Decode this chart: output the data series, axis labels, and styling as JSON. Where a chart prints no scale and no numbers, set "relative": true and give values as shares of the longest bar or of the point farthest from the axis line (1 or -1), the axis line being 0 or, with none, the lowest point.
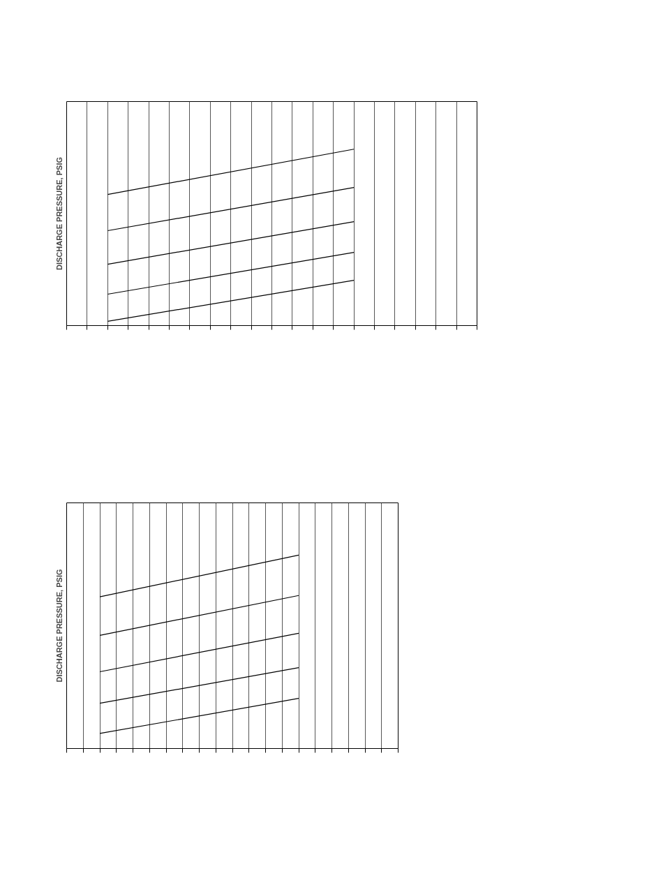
{
  "chart_data": [
    {
      "type": "line",
      "ylabel": "DISCHARGE PRESSURE, PSIG",
      "relative": true,
      "categories": [
        null,
        null,
        null,
        null,
        null,
        null,
        null,
        null,
        null,
        null,
        null,
        null,
        null,
        null,
        null,
        null,
        null,
        null,
        null,
        null,
        null
      ],
      "grid": "x",
      "marker": "none",
      "line_style": "solid",
      "series": [
        {
          "color": "#000000",
          "values": [
            null,
            null,
            0.743,
            null,
            null,
            null,
            null,
            null,
            null,
            null,
            null,
            null,
            null,
            null,
            1,
            null,
            null,
            null,
            null,
            null,
            null
          ]
        },
        {
          "color": "#000000",
          "values": [
            null,
            null,
            0.538,
            null,
            null,
            null,
            null,
            null,
            null,
            null,
            null,
            null,
            null,
            null,
            0.783,
            null,
            null,
            null,
            null,
            null,
            null
          ]
        },
        {
          "color": "#000000",
          "values": [
            null,
            null,
            0.348,
            null,
            null,
            null,
            null,
            null,
            null,
            null,
            null,
            null,
            null,
            null,
            0.589,
            null,
            null,
            null,
            null,
            null,
            null
          ]
        },
        {
          "color": "#000000",
          "values": [
            null,
            null,
            0.178,
            null,
            null,
            null,
            null,
            null,
            null,
            null,
            null,
            null,
            null,
            null,
            0.415,
            null,
            null,
            null,
            null,
            null,
            null
          ]
        },
        {
          "color": "#000000",
          "values": [
            null,
            null,
            0.024,
            null,
            null,
            null,
            null,
            null,
            null,
            null,
            null,
            null,
            null,
            null,
            0.257,
            null,
            null,
            null,
            null,
            null,
            null
          ]
        }
      ]
    },
    {
      "type": "line",
      "ylabel": "DISCHARGE PRESSURE, PSIG",
      "relative": true,
      "categories": [
        null,
        null,
        null,
        null,
        null,
        null,
        null,
        null,
        null,
        null,
        null,
        null,
        null,
        null,
        null,
        null,
        null,
        null,
        null,
        null,
        null
      ],
      "grid": "x",
      "marker": "none",
      "line_style": "solid",
      "series": [
        {
          "color": "#000000",
          "values": [
            null,
            null,
            0.784,
            null,
            null,
            null,
            null,
            null,
            null,
            null,
            null,
            null,
            null,
            null,
            1,
            null,
            null,
            null,
            null,
            null,
            null
          ]
        },
        {
          "color": "#000000",
          "values": [
            null,
            null,
            0.585,
            null,
            null,
            null,
            null,
            null,
            null,
            null,
            null,
            null,
            null,
            null,
            0.791,
            null,
            null,
            null,
            null,
            null,
            null
          ]
        },
        {
          "color": "#000000",
          "values": [
            null,
            null,
            0.397,
            null,
            null,
            null,
            null,
            null,
            null,
            null,
            null,
            null,
            null,
            null,
            0.596,
            null,
            null,
            null,
            null,
            null,
            null
          ]
        },
        {
          "color": "#000000",
          "values": [
            null,
            null,
            0.234,
            null,
            null,
            null,
            null,
            null,
            null,
            null,
            null,
            null,
            null,
            null,
            0.418,
            null,
            null,
            null,
            null,
            null,
            null
          ]
        },
        {
          "color": "#000000",
          "values": [
            null,
            null,
            0.078,
            null,
            null,
            null,
            null,
            null,
            null,
            null,
            null,
            null,
            null,
            null,
            0.259,
            null,
            null,
            null,
            null,
            null,
            null
          ]
        }
      ]
    }
  ]
}
